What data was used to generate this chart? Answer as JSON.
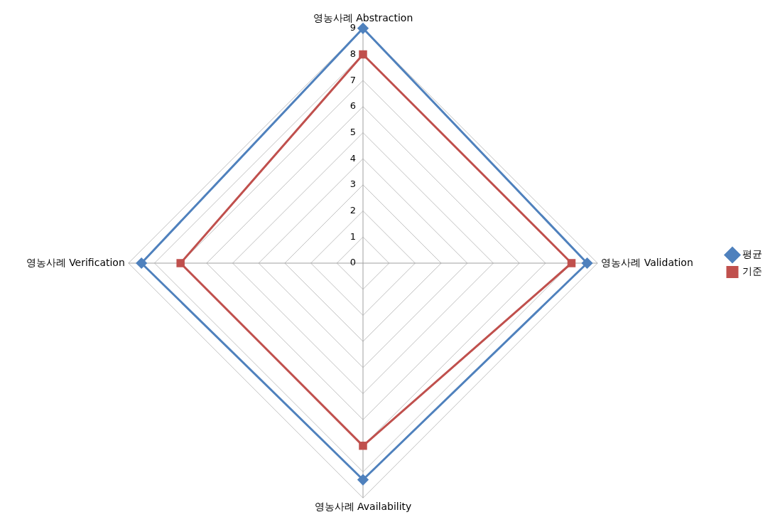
{
  "chart_data": {
    "type": "radar",
    "categories": [
      "영농사례 Abstraction",
      "영농사례 Validation",
      "영농사례 Availability",
      "영농사례 Verification"
    ],
    "series": [
      {
        "name": "평균",
        "color": "#4f81bd",
        "marker": "diamond",
        "values": [
          9,
          8.6,
          8.3,
          8.5
        ]
      },
      {
        "name": "기준",
        "color": "#c0504d",
        "marker": "square",
        "values": [
          8,
          8,
          7,
          7
        ]
      }
    ],
    "ylim": [
      0,
      9
    ],
    "yticks": [
      0,
      1,
      2,
      3,
      4,
      5,
      6,
      7,
      8,
      9
    ],
    "grid": true,
    "legend": "right"
  }
}
